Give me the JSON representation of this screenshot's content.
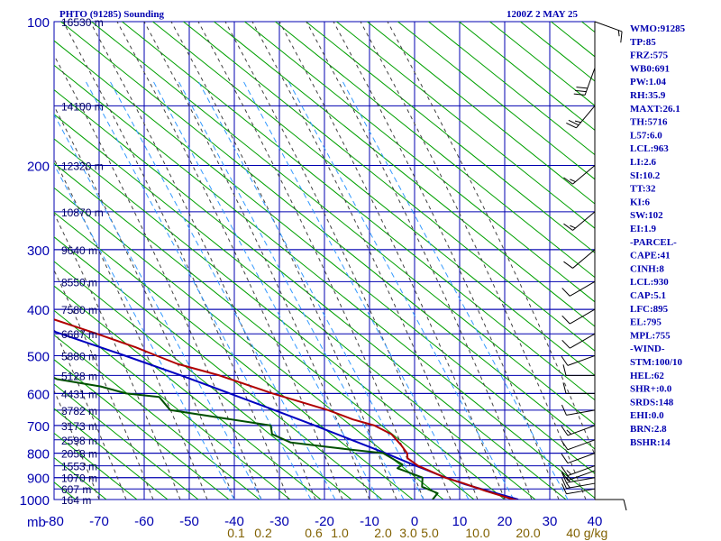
{
  "title_left": "PHTO (91285) Sounding",
  "title_right": "1200Z  2 MAY 25",
  "colors": {
    "grid": "#0000b0",
    "dry_adiabat": "#00a000",
    "moist_adiabat": "#404040",
    "mixing_ratio": "#3399ff",
    "temperature": "#b00000",
    "dewpoint": "#005000",
    "parcel": "#0000c0",
    "wind": "#000000",
    "height_label": "#000066",
    "mixing_label": "#806000"
  },
  "indices": [
    "WMO:91285",
    "TP:85",
    "FRZ:575",
    "WB0:691",
    "PW:1.04",
    "RH:35.9",
    "MAXT:26.1",
    "TH:5716",
    "L57:6.0",
    "LCL:963",
    "LI:2.6",
    "SI:10.2",
    "TT:32",
    "KI:6",
    "SW:102",
    "EI:1.9",
    "-PARCEL-",
    "CAPE:41",
    "CINH:8",
    "LCL:930",
    "CAP:5.1",
    "LFC:895",
    "EL:795",
    "MPL:755",
    "-WIND-",
    "STM:100/10",
    "HEL:62",
    "SHR+:0.0",
    "SRDS:148",
    "EHI:0.0",
    "BRN:2.8",
    "BSHR:14"
  ],
  "chart_data": {
    "type": "skew-t",
    "xlabel": "mb",
    "temperature_ticks": [
      "-80",
      "-70",
      "-60",
      "-50",
      "-40",
      "-30",
      "-20",
      "-10",
      "0",
      "10",
      "20",
      "30",
      "40"
    ],
    "temperature_values": [
      -80,
      -70,
      -60,
      -50,
      -40,
      -30,
      -20,
      -10,
      0,
      10,
      20,
      30,
      40
    ],
    "pressure_ticks": [
      "100",
      "200",
      "300",
      "400",
      "500",
      "600",
      "700",
      "800",
      "900",
      "1000"
    ],
    "pressure_values": [
      100,
      200,
      300,
      400,
      500,
      600,
      700,
      800,
      900,
      1000
    ],
    "height_labels": [
      {
        "p": 100,
        "label": "16530 m"
      },
      {
        "p": 150,
        "label": "14100 m"
      },
      {
        "p": 200,
        "label": "12320 m"
      },
      {
        "p": 250,
        "label": "10870 m"
      },
      {
        "p": 300,
        "label": "9640 m"
      },
      {
        "p": 350,
        "label": "8550 m"
      },
      {
        "p": 400,
        "label": "7580 m"
      },
      {
        "p": 450,
        "label": "6687 m"
      },
      {
        "p": 500,
        "label": "5880 m"
      },
      {
        "p": 550,
        "label": "5128 m"
      },
      {
        "p": 600,
        "label": "4431 m"
      },
      {
        "p": 650,
        "label": "3782 m"
      },
      {
        "p": 700,
        "label": "3173 m"
      },
      {
        "p": 750,
        "label": "2598 m"
      },
      {
        "p": 800,
        "label": "2058 m"
      },
      {
        "p": 850,
        "label": "1553 m"
      },
      {
        "p": 900,
        "label": "1070 m"
      },
      {
        "p": 950,
        "label": "607 m"
      },
      {
        "p": 1000,
        "label": "164 m"
      }
    ],
    "mixing_ratio_labels": [
      "0.1",
      "0.2",
      "0.6",
      "1.0",
      "2.0",
      "3.0",
      "5.0",
      "10.0",
      "20.0",
      "40",
      "g/kg"
    ],
    "temperature_profile": [
      [
        1010,
        23.5
      ],
      [
        1000,
        22
      ],
      [
        960,
        19
      ],
      [
        925,
        17
      ],
      [
        900,
        15
      ],
      [
        850,
        13.5
      ],
      [
        820,
        14
      ],
      [
        800,
        15.8
      ],
      [
        770,
        17.5
      ],
      [
        750,
        18.5
      ],
      [
        730,
        19.5
      ],
      [
        700,
        19
      ],
      [
        680,
        16.5
      ],
      [
        650,
        14.5
      ],
      [
        600,
        8.5
      ],
      [
        550,
        3.5
      ],
      [
        520,
        -1.5
      ],
      [
        500,
        -3
      ],
      [
        480,
        -4.5
      ],
      [
        450,
        -8
      ],
      [
        400,
        -15
      ],
      [
        350,
        -25
      ],
      [
        300,
        -35
      ],
      [
        260,
        -45
      ],
      [
        230,
        -52
      ],
      [
        200,
        -59
      ],
      [
        180,
        -62
      ],
      [
        170,
        -63
      ],
      [
        150,
        -64
      ],
      [
        125,
        -66.5
      ],
      [
        100,
        -70
      ]
    ],
    "dewpoint_profile": [
      [
        1010,
        3.5
      ],
      [
        1000,
        4
      ],
      [
        970,
        7.5
      ],
      [
        940,
        6.5
      ],
      [
        900,
        10
      ],
      [
        860,
        8
      ],
      [
        845,
        10.5
      ],
      [
        800,
        10.5
      ],
      [
        780,
        2
      ],
      [
        760,
        -6
      ],
      [
        730,
        -7
      ],
      [
        700,
        -4
      ],
      [
        650,
        -20.5
      ],
      [
        610,
        -18
      ],
      [
        600,
        -24
      ],
      [
        580,
        -27
      ],
      [
        560,
        -34
      ],
      [
        520,
        -35
      ],
      [
        480,
        -34.5
      ],
      [
        420,
        -38
      ],
      [
        400,
        -41
      ],
      [
        380,
        -42
      ],
      [
        340,
        -44
      ],
      [
        310,
        -48
      ],
      [
        280,
        -58
      ],
      [
        255,
        -58
      ],
      [
        230,
        -55
      ],
      [
        200,
        -67
      ],
      [
        185,
        -66
      ],
      [
        150,
        -72
      ],
      [
        140,
        -76
      ],
      [
        130,
        -68
      ],
      [
        120,
        -72
      ],
      [
        100,
        -95
      ]
    ],
    "parcel_profile": [
      [
        1000,
        23
      ],
      [
        930,
        17
      ],
      [
        895,
        15
      ],
      [
        850,
        13
      ],
      [
        800,
        11
      ],
      [
        750,
        8.5
      ],
      [
        700,
        5.8
      ],
      [
        650,
        2.6
      ],
      [
        600,
        -1
      ],
      [
        550,
        -5
      ],
      [
        500,
        -10
      ],
      [
        450,
        -16
      ],
      [
        400,
        -22.5
      ],
      [
        350,
        -30.5
      ],
      [
        300,
        -39.5
      ],
      [
        250,
        -51
      ],
      [
        200,
        -64
      ],
      [
        150,
        -81
      ]
    ],
    "wind_barbs": [
      {
        "p": 1000,
        "dir": 90,
        "kt": 10
      },
      {
        "p": 950,
        "dir": 260,
        "kt": 10
      },
      {
        "p": 925,
        "dir": 260,
        "kt": 15
      },
      {
        "p": 900,
        "dir": 260,
        "kt": 15
      },
      {
        "p": 870,
        "dir": 250,
        "kt": 15
      },
      {
        "p": 850,
        "dir": 250,
        "kt": 15
      },
      {
        "p": 800,
        "dir": 250,
        "kt": 10
      },
      {
        "p": 750,
        "dir": 250,
        "kt": 10
      },
      {
        "p": 700,
        "dir": 250,
        "kt": 15
      },
      {
        "p": 650,
        "dir": 260,
        "kt": 10
      },
      {
        "p": 600,
        "dir": 270,
        "kt": 10
      },
      {
        "p": 550,
        "dir": 270,
        "kt": 10
      },
      {
        "p": 500,
        "dir": 250,
        "kt": 10
      },
      {
        "p": 450,
        "dir": 240,
        "kt": 10
      },
      {
        "p": 400,
        "dir": 240,
        "kt": 10
      },
      {
        "p": 350,
        "dir": 240,
        "kt": 10
      },
      {
        "p": 300,
        "dir": 230,
        "kt": 10
      },
      {
        "p": 250,
        "dir": 230,
        "kt": 15
      },
      {
        "p": 200,
        "dir": 230,
        "kt": 15
      },
      {
        "p": 150,
        "dir": 220,
        "kt": 25
      },
      {
        "p": 125,
        "dir": 200,
        "kt": 30
      },
      {
        "p": 100,
        "dir": 110,
        "kt": 15
      }
    ]
  }
}
